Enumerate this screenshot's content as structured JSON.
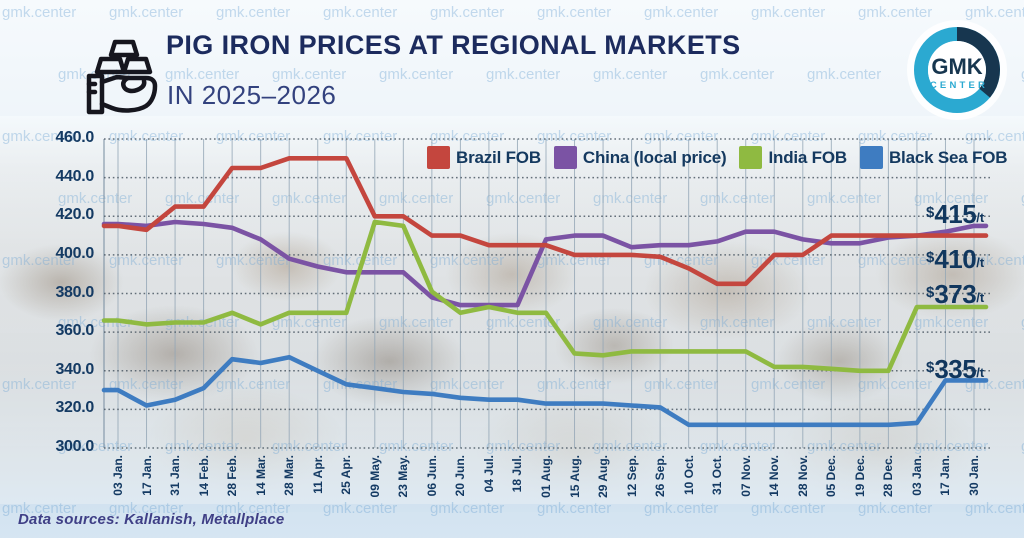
{
  "header": {
    "title": "PIG IRON PRICES AT REGIONAL MARKETS",
    "subtitle": "IN 2025–2026"
  },
  "logo": {
    "line1": "GMK",
    "line2": "CENTER"
  },
  "watermark": {
    "text": "gmk.center",
    "color": "rgba(116,168,212,0.40)"
  },
  "footer": {
    "text": "Data sources: Kallanish, Metallplace"
  },
  "annotations": [
    {
      "currency": "$",
      "value": "415",
      "unit": "/t",
      "series": "China (local price)"
    },
    {
      "currency": "$",
      "value": "410",
      "unit": "/t",
      "series": "Brazil FOB"
    },
    {
      "currency": "$",
      "value": "373",
      "unit": "/t",
      "series": "India FOB"
    },
    {
      "currency": "$",
      "value": "335",
      "unit": "/t",
      "series": "Black Sea FOB"
    }
  ],
  "chart_data": {
    "type": "line",
    "title": "PIG IRON PRICES AT REGIONAL MARKETS IN 2025–2026",
    "unit": "USD per tonne",
    "ylim": [
      300,
      460
    ],
    "y_ticks": [
      "460.0",
      "440.0",
      "420.0",
      "400.0",
      "380.0",
      "360.0",
      "340.0",
      "320.0",
      "300.0"
    ],
    "grid": "horizontal dotted, vertical solid",
    "legend_position": "top",
    "x_labels": [
      "03 Jan.",
      "17 Jan.",
      "31 Jan.",
      "14 Feb.",
      "28 Feb.",
      "14 Mar.",
      "28 Mar.",
      "11 Apr.",
      "25 Apr.",
      "09 May.",
      "23 May.",
      "06 Jun.",
      "20 Jun.",
      "04 Jul.",
      "18 Jul.",
      "01 Aug.",
      "15 Aug.",
      "29 Aug.",
      "12 Sep.",
      "26 Sep.",
      "10 Oct.",
      "31 Oct.",
      "07 Nov.",
      "14 Nov.",
      "28 Nov.",
      "05 Dec.",
      "19 Dec.",
      "28 Dec.",
      "03 Jan.",
      "17 Jan.",
      "30 Jan."
    ],
    "series": [
      {
        "name": "Brazil FOB",
        "color": "#C4463E",
        "values": [
          415,
          413,
          425,
          425,
          445,
          445,
          450,
          450,
          450,
          420,
          420,
          410,
          410,
          405,
          405,
          405,
          400,
          400,
          400,
          399,
          393,
          385,
          385,
          400,
          400,
          410,
          410,
          410,
          410,
          410,
          410
        ]
      },
      {
        "name": "China (local price)",
        "color": "#7B53A4",
        "values": [
          416,
          415,
          417,
          416,
          414,
          408,
          398,
          394,
          391,
          391,
          391,
          378,
          374,
          374,
          374,
          408,
          410,
          410,
          404,
          405,
          405,
          407,
          412,
          412,
          408,
          406,
          406,
          409,
          410,
          412,
          415
        ]
      },
      {
        "name": "India FOB",
        "color": "#8FBA41",
        "values": [
          366,
          364,
          365,
          365,
          370,
          364,
          370,
          370,
          370,
          417,
          415,
          381,
          370,
          373,
          370,
          370,
          349,
          348,
          350,
          350,
          350,
          350,
          350,
          342,
          342,
          341,
          340,
          340,
          373,
          373,
          373
        ]
      },
      {
        "name": "Black Sea FOB",
        "color": "#3E7CC1",
        "values": [
          330,
          322,
          325,
          331,
          346,
          344,
          347,
          340,
          333,
          331,
          329,
          328,
          326,
          325,
          325,
          323,
          323,
          323,
          322,
          321,
          312,
          312,
          312,
          312,
          312,
          312,
          312,
          312,
          313,
          335,
          335
        ]
      }
    ]
  }
}
